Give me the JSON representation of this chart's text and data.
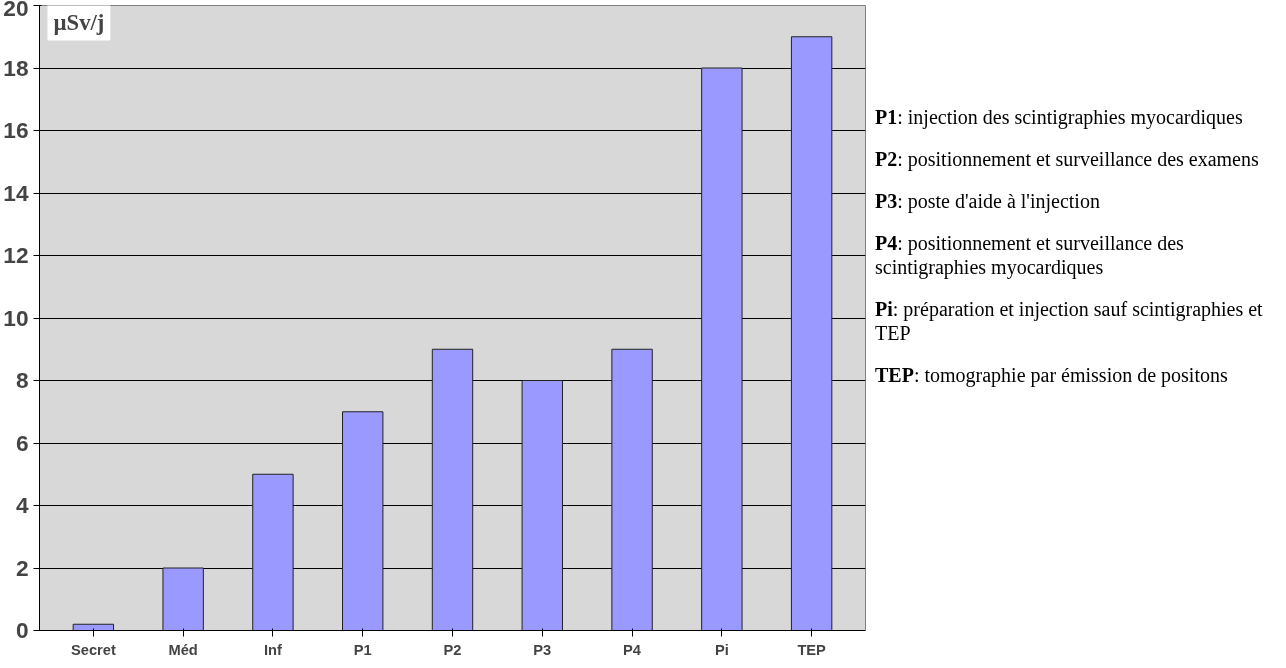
{
  "chart_data": {
    "type": "bar",
    "ylabel": "µSv/j",
    "categories": [
      "Secret",
      "Méd",
      "Inf",
      "P1",
      "P2",
      "P3",
      "P4",
      "Pi",
      "TEP"
    ],
    "values": [
      0.2,
      2,
      5,
      7,
      9,
      8,
      9,
      18,
      19
    ],
    "color": "#9999ff",
    "ylim": [
      0,
      20
    ],
    "yticks": [
      0,
      2,
      4,
      6,
      8,
      10,
      12,
      14,
      16,
      18,
      20
    ],
    "grid": "y",
    "annotations": [
      "P1: injection des scintigraphies myocardiques",
      "P2: positionnement et surveillance des examens",
      "P3: poste d'aide à l'injection",
      "P4: positionnement et surveillance des scintigraphies myocardiques",
      "Pi: préparation et injection sauf scintigraphies et TEP",
      "TEP: tomographie par émission de positons"
    ]
  }
}
